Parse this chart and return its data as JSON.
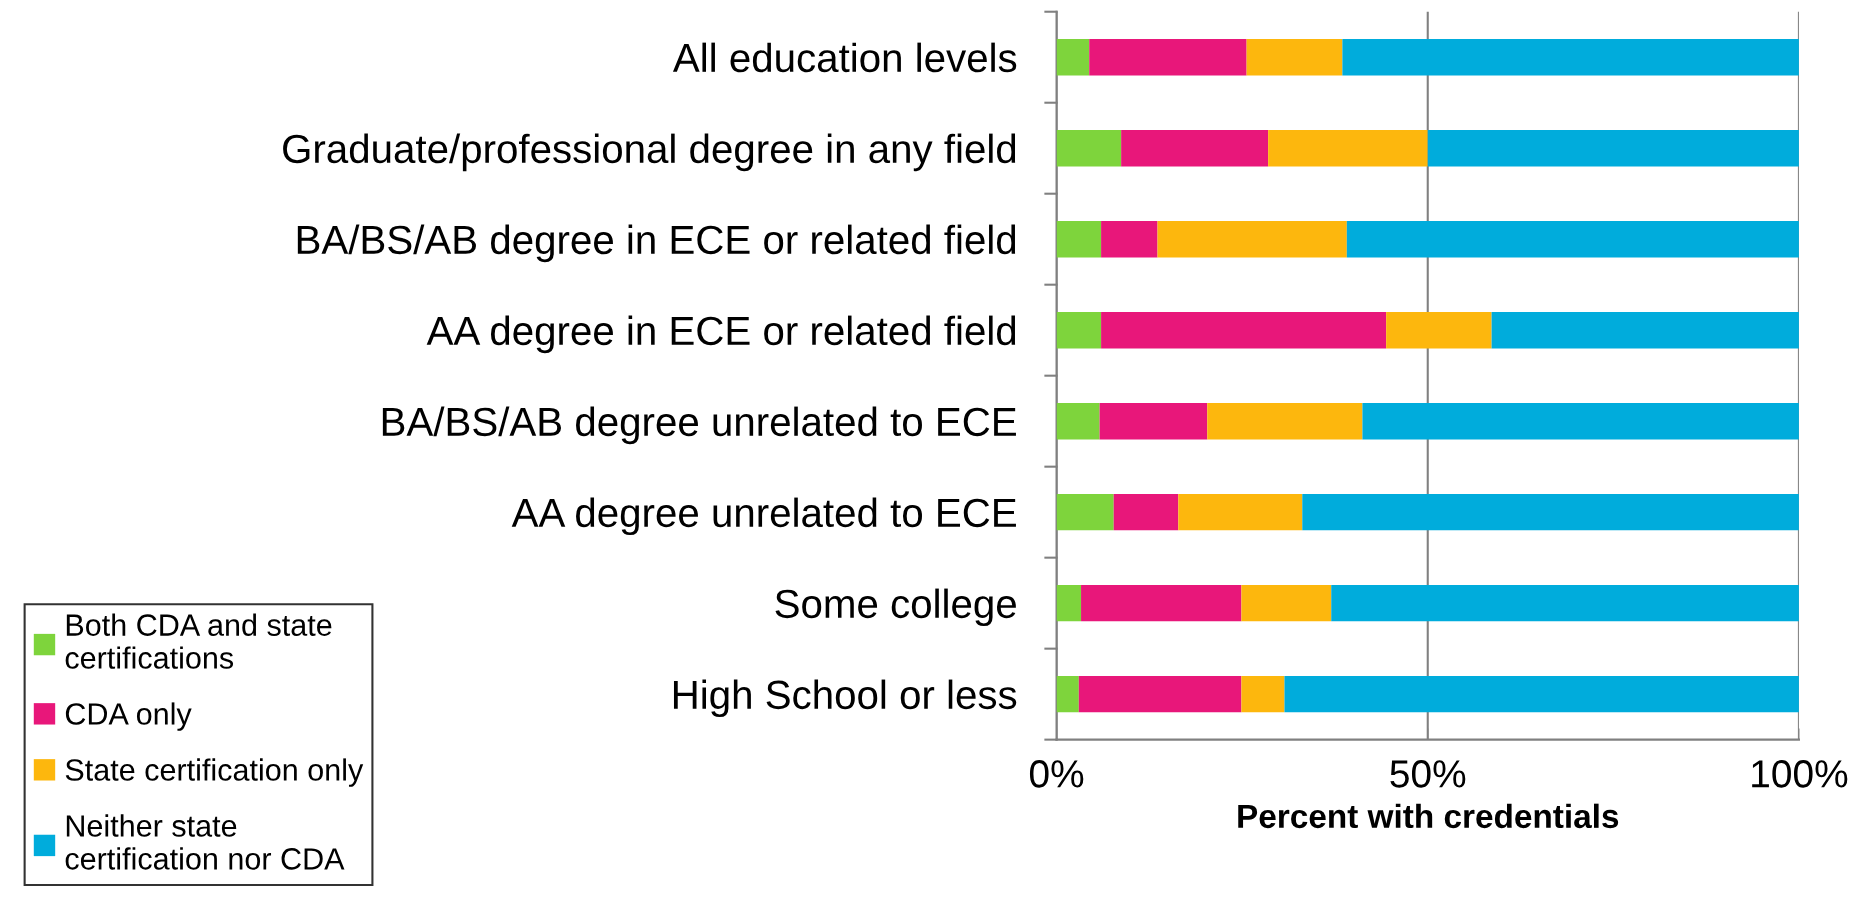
{
  "chart_data": {
    "type": "bar",
    "orientation": "horizontal",
    "stacked": true,
    "xlabel": "Percent with credentials",
    "categories": [
      "All education levels",
      "Graduate/professional degree in any field",
      "BA/BS/AB degree in ECE or related field",
      "AA degree in ECE or related field",
      "BA/BS/AB degree unrelated to ECE",
      "AA degree unrelated to ECE",
      "Some college",
      "High School or less"
    ],
    "series": [
      {
        "name": "Both CDA and state\ncertifications",
        "color": "#7ed43c",
        "values": [
          4.4,
          8.7,
          6.0,
          6.0,
          5.8,
          7.7,
          3.3,
          3.0
        ]
      },
      {
        "name": "CDA only",
        "color": "#e8177a",
        "values": [
          21.2,
          19.8,
          7.6,
          38.4,
          14.5,
          8.7,
          21.6,
          21.9
        ]
      },
      {
        "name": "State certification only",
        "color": "#fdb70d",
        "values": [
          12.9,
          21.5,
          25.5,
          14.2,
          20.9,
          16.7,
          12.1,
          5.8
        ]
      },
      {
        "name": "Neither state\ncertification nor CDA",
        "color": "#00acdc",
        "values": [
          61.5,
          50.0,
          60.9,
          41.4,
          58.8,
          66.9,
          63.0,
          69.3
        ]
      }
    ],
    "xlim": [
      0,
      100
    ],
    "xticks": [
      {
        "value": 0,
        "label": "0%"
      },
      {
        "value": 50,
        "label": "50%"
      },
      {
        "value": 100,
        "label": "100%"
      }
    ],
    "grid": "x",
    "legend": "bottom left"
  }
}
